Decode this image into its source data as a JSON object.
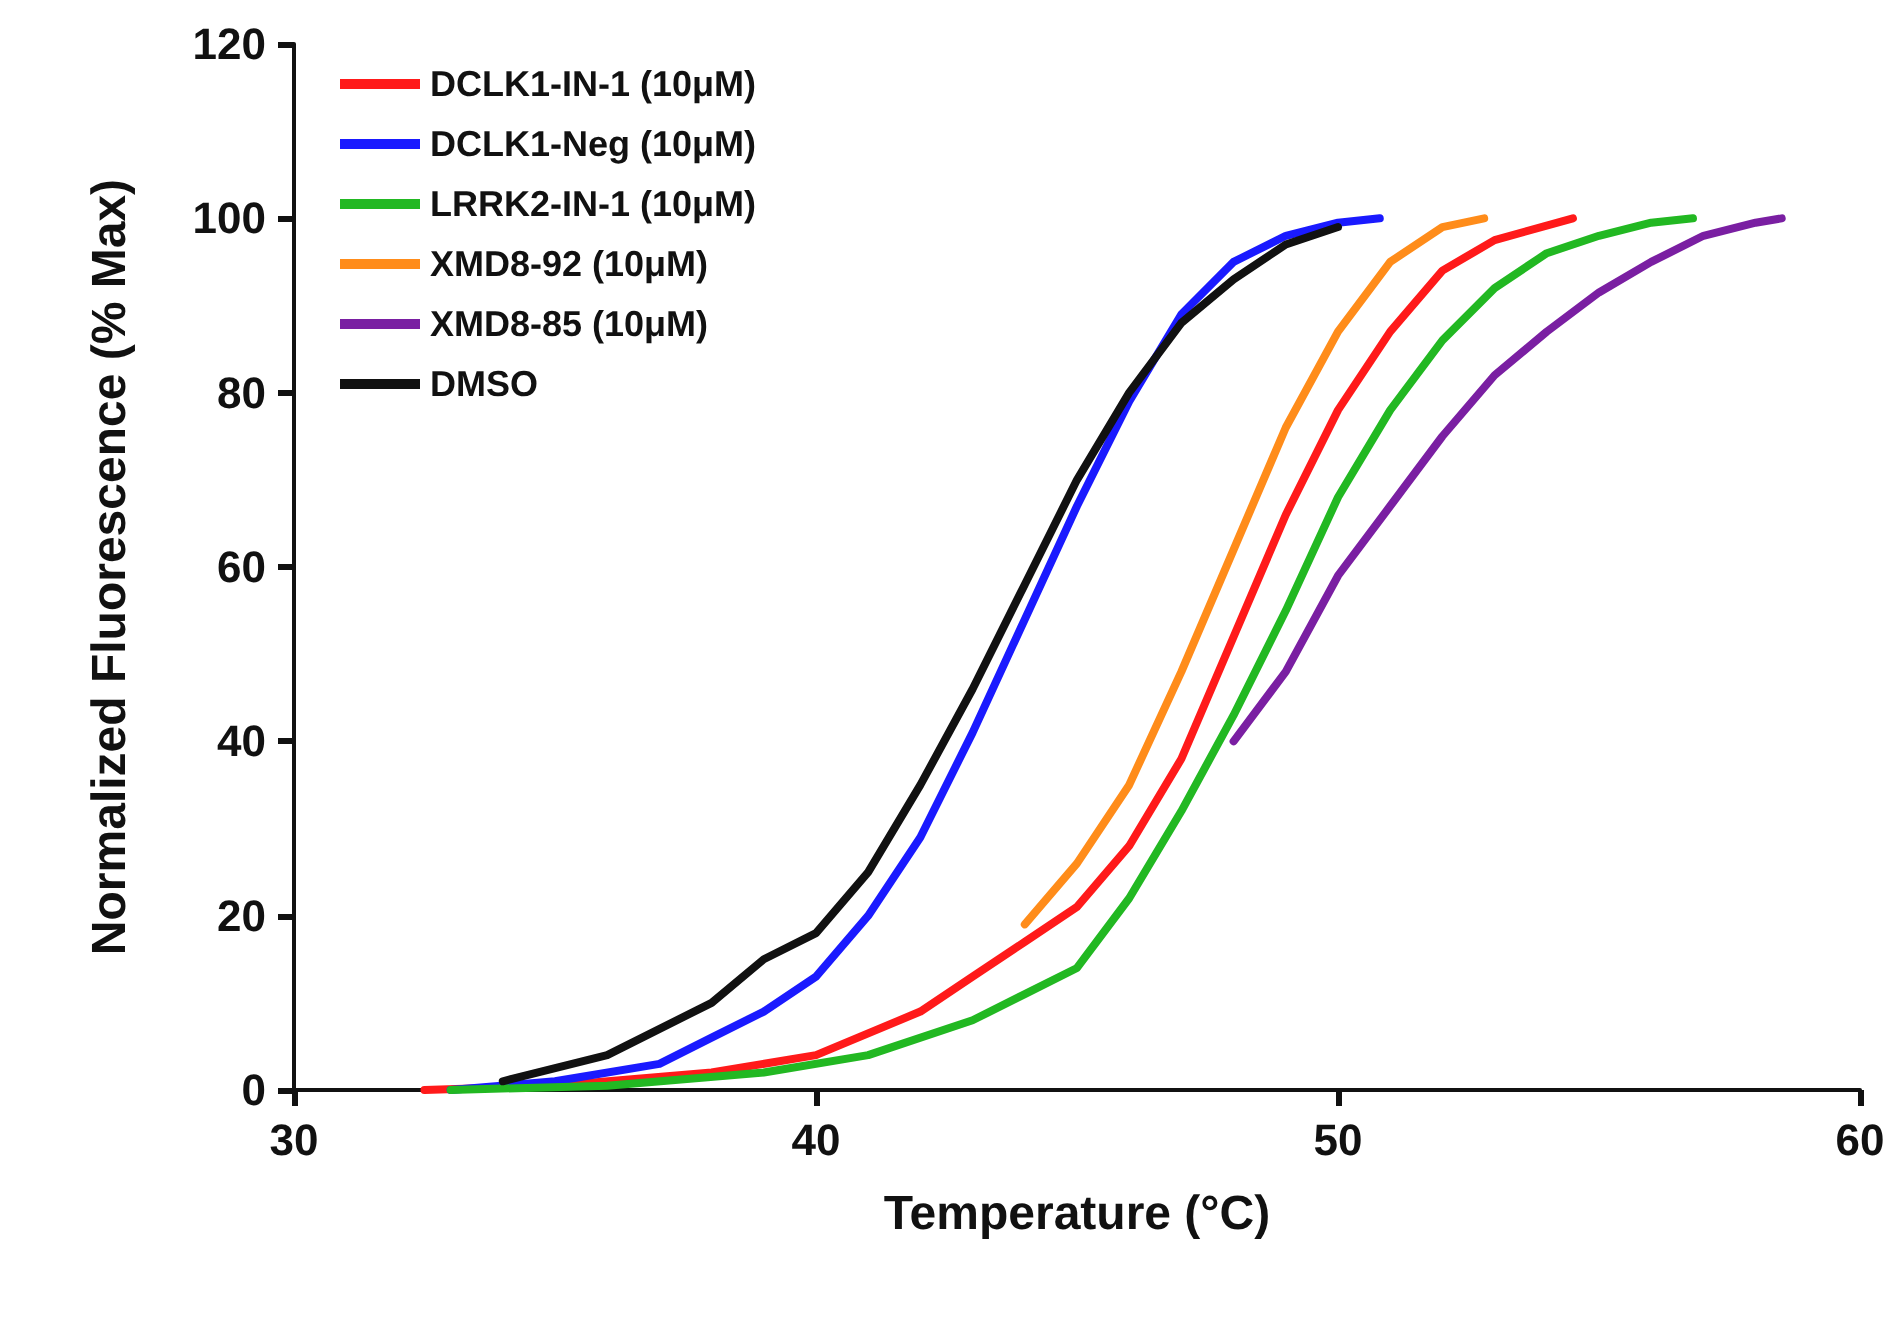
{
  "chart_data": {
    "type": "line",
    "xlabel": "Temperature (°C)",
    "ylabel": "Normalized Fluorescence (% Max)",
    "xlim": [
      30,
      60
    ],
    "xticks": [
      30,
      40,
      50,
      60
    ],
    "ylim": [
      0,
      120
    ],
    "yticks": [
      0,
      20,
      40,
      60,
      80,
      100,
      120
    ],
    "grid": false,
    "legend": "top left",
    "marker": "none",
    "line_style": "solid",
    "series": [
      {
        "name": "DCLK1-IN-1 (10μM)",
        "color": "#ff1a1a",
        "x": [
          32.5,
          35,
          38,
          40,
          42,
          43,
          44,
          45,
          46,
          47,
          48,
          49,
          50,
          51,
          52,
          53,
          54.5
        ],
        "values": [
          0,
          0.5,
          2,
          4,
          9,
          13,
          17,
          21,
          28,
          38,
          52,
          66,
          78,
          87,
          94,
          97.5,
          100
        ]
      },
      {
        "name": "DCLK1-Neg (10μM)",
        "color": "#1a1aff",
        "x": [
          33,
          35,
          37,
          38,
          39,
          40,
          41,
          42,
          43,
          44,
          45,
          46,
          47,
          48,
          49,
          50,
          50.8
        ],
        "values": [
          0,
          1,
          3,
          6,
          9,
          13,
          20,
          29,
          41,
          54,
          67,
          79,
          89,
          95,
          98,
          99.5,
          100
        ]
      },
      {
        "name": "LRRK2-IN-1 (10μM)",
        "color": "#22b822",
        "x": [
          33,
          36,
          39,
          41,
          43,
          44,
          45,
          46,
          47,
          48,
          49,
          50,
          51,
          52,
          53,
          54,
          55,
          56,
          56.8
        ],
        "values": [
          0,
          0.5,
          2,
          4,
          8,
          11,
          14,
          22,
          32,
          43,
          55,
          68,
          78,
          86,
          92,
          96,
          98,
          99.5,
          100
        ]
      },
      {
        "name": "XMD8-92 (10μM)",
        "color": "#ff8c1a",
        "x": [
          44,
          45,
          46,
          47,
          48,
          49,
          50,
          51,
          52,
          52.8
        ],
        "values": [
          19,
          26,
          35,
          48,
          62,
          76,
          87,
          95,
          99,
          100
        ]
      },
      {
        "name": "XMD8-85 (10μM)",
        "color": "#7a1fa2",
        "x": [
          48,
          49,
          50,
          51,
          52,
          53,
          54,
          55,
          56,
          57,
          58,
          58.5
        ],
        "values": [
          40,
          48,
          59,
          67,
          75,
          82,
          87,
          91.5,
          95,
          98,
          99.5,
          100
        ]
      },
      {
        "name": "DMSO",
        "color": "#111111",
        "x": [
          34,
          36,
          38,
          39,
          40,
          41,
          42,
          43,
          44,
          45,
          46,
          47,
          48,
          49,
          50
        ],
        "values": [
          1,
          4,
          10,
          15,
          18,
          25,
          35,
          46,
          58,
          70,
          80,
          88,
          93,
          97,
          99
        ]
      }
    ]
  }
}
